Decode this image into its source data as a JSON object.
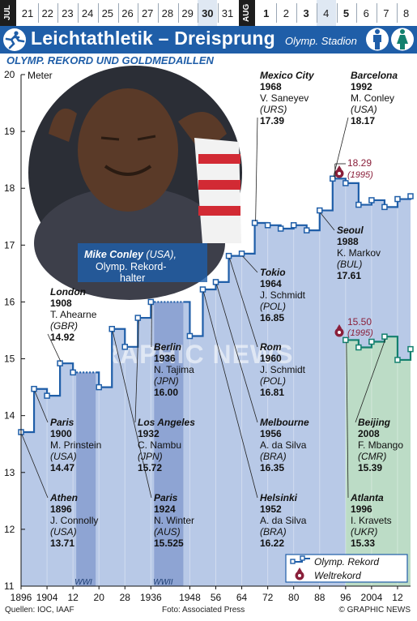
{
  "date_bar": {
    "month_start": "JUL",
    "month_end": "AUG",
    "days_jul": [
      "21",
      "22",
      "23",
      "24",
      "25",
      "26",
      "27",
      "28",
      "29",
      "30",
      "31"
    ],
    "days_aug": [
      "1",
      "2",
      "3",
      "4",
      "5",
      "6",
      "7",
      "8"
    ],
    "bold_days": [
      "30",
      "1",
      "3",
      "5"
    ]
  },
  "header": {
    "title": "Leichtathletik – Dreisprung",
    "venue": "Olymp. Stadion",
    "sport_icon": "triple-jump-pictogram",
    "gender_icons": [
      "male-icon",
      "female-icon"
    ],
    "brand_color": "#1f5ea8"
  },
  "subtitle": "Olymp. Rekord und Goldmedaillen",
  "photo": {
    "caption_name": "Mike Conley",
    "caption_country": "(USA),",
    "caption_role": "Olymp. Rekord-",
    "caption_role2": "halter"
  },
  "watermark": {
    "text": "GRAPHIC NEWS"
  },
  "footer": {
    "sources": "Quellen: IOC, IAAF",
    "photo_credit": "Foto: Associated Press",
    "copyright": "© GRAPHIC NEWS"
  },
  "chart_data": {
    "type": "line",
    "ylabel": "Meter",
    "ylim": [
      11,
      20
    ],
    "y_ticks": [
      11,
      12,
      13,
      14,
      15,
      16,
      17,
      18,
      19,
      20
    ],
    "xlim": [
      1896,
      2016
    ],
    "x_ticks": [
      1896,
      1904,
      1912,
      1920,
      1928,
      1936,
      1948,
      1956,
      1964,
      1972,
      1980,
      1988,
      1996,
      2004,
      2012
    ],
    "x_tick_labels": [
      "1896",
      "1904",
      "12",
      "20",
      "28",
      "1936",
      "1948",
      "56",
      "64",
      "72",
      "80",
      "88",
      "96",
      "2004",
      "12"
    ],
    "series": [
      {
        "name": "Olymp. Rekord",
        "sport": "men",
        "points": [
          {
            "year": 1896,
            "value": 13.71
          },
          {
            "year": 1900,
            "value": 14.47
          },
          {
            "year": 1904,
            "value": 14.35
          },
          {
            "year": 1908,
            "value": 14.92
          },
          {
            "year": 1912,
            "value": 14.76
          },
          {
            "year": 1920,
            "value": 14.5
          },
          {
            "year": 1924,
            "value": 15.525
          },
          {
            "year": 1928,
            "value": 15.21
          },
          {
            "year": 1932,
            "value": 15.72
          },
          {
            "year": 1936,
            "value": 16.0
          },
          {
            "year": 1948,
            "value": 15.4
          },
          {
            "year": 1952,
            "value": 16.22
          },
          {
            "year": 1956,
            "value": 16.35
          },
          {
            "year": 1960,
            "value": 16.81
          },
          {
            "year": 1964,
            "value": 16.85
          },
          {
            "year": 1968,
            "value": 17.39
          },
          {
            "year": 1972,
            "value": 17.35
          },
          {
            "year": 1976,
            "value": 17.29
          },
          {
            "year": 1980,
            "value": 17.35
          },
          {
            "year": 1984,
            "value": 17.26
          },
          {
            "year": 1988,
            "value": 17.61
          },
          {
            "year": 1992,
            "value": 18.17
          },
          {
            "year": 1996,
            "value": 18.09
          },
          {
            "year": 2000,
            "value": 17.71
          },
          {
            "year": 2004,
            "value": 17.79
          },
          {
            "year": 2008,
            "value": 17.67
          },
          {
            "year": 2012,
            "value": 17.81
          },
          {
            "year": 2016,
            "value": 17.86
          }
        ],
        "gaps": [
          [
            1912,
            1920
          ],
          [
            1936,
            1948
          ]
        ]
      },
      {
        "name": "Olymp. Rekord",
        "sport": "women",
        "points": [
          {
            "year": 1996,
            "value": 15.33
          },
          {
            "year": 2000,
            "value": 15.2
          },
          {
            "year": 2004,
            "value": 15.3
          },
          {
            "year": 2008,
            "value": 15.39
          },
          {
            "year": 2012,
            "value": 14.98
          },
          {
            "year": 2016,
            "value": 15.17
          }
        ]
      }
    ],
    "world_records": [
      {
        "label": "Weltrekord",
        "value": "18.29",
        "year_note": "(1995)",
        "sport": "men"
      },
      {
        "label": "Weltrekord",
        "value": "15.50",
        "year_note": "(1995)",
        "sport": "women"
      }
    ],
    "war_bands": [
      {
        "label": "WWI",
        "from": 1916,
        "to": 1916
      },
      {
        "label": "WWII",
        "from": 1940,
        "to": 1944
      }
    ],
    "annotations": [
      {
        "city": "Athen",
        "year": "1896",
        "name": "J. Connolly",
        "country": "(USA)",
        "result": "13.71"
      },
      {
        "city": "Paris",
        "year": "1900",
        "name": "M. Prinstein",
        "country": "(USA)",
        "result": "14.47"
      },
      {
        "city": "London",
        "year": "1908",
        "name": "T. Ahearne",
        "country": "(GBR)",
        "result": "14.92"
      },
      {
        "city": "Paris",
        "year": "1924",
        "name": "N. Winter",
        "country": "(AUS)",
        "result": "15.525"
      },
      {
        "city": "Los Angeles",
        "year": "1932",
        "name": "C. Nambu",
        "country": "(JPN)",
        "result": "15.72"
      },
      {
        "city": "Berlin",
        "year": "1936",
        "name": "N. Tajima",
        "country": "(JPN)",
        "result": "16.00"
      },
      {
        "city": "Helsinki",
        "year": "1952",
        "name": "A. da Silva",
        "country": "(BRA)",
        "result": "16.22"
      },
      {
        "city": "Melbourne",
        "year": "1956",
        "name": "A. da Silva",
        "country": "(BRA)",
        "result": "16.35"
      },
      {
        "city": "Rom",
        "year": "1960",
        "name": "J. Schmidt",
        "country": "(POL)",
        "result": "16.81"
      },
      {
        "city": "Tokio",
        "year": "1964",
        "name": "J. Schmidt",
        "country": "(POL)",
        "result": "16.85"
      },
      {
        "city": "Mexico City",
        "year": "1968",
        "name": "V. Saneyev",
        "country": "(URS)",
        "result": "17.39"
      },
      {
        "city": "Seoul",
        "year": "1988",
        "name": "K. Markov",
        "country": "(BUL)",
        "result": "17.61"
      },
      {
        "city": "Barcelona",
        "year": "1992",
        "name": "M. Conley",
        "country": "(USA)",
        "result": "18.17"
      },
      {
        "city": "Atlanta",
        "year": "1996",
        "name": "I. Kravets",
        "country": "(UKR)",
        "result": "15.33"
      },
      {
        "city": "Beijing",
        "year": "2008",
        "name": "F. Mbango",
        "country": "(CMR)",
        "result": "15.39"
      }
    ],
    "legend": {
      "position": "bottom-right",
      "items": [
        {
          "label": "Olymp. Rekord",
          "marker": "square-step-line"
        },
        {
          "label": "Weltrekord",
          "marker": "record-medal"
        }
      ]
    },
    "colors": {
      "men_line": "#1f5ea8",
      "men_fill": "#b8c9e7",
      "women_line": "#13806e",
      "women_fill": "#bcdcc6",
      "war_band": "#8ea4d3",
      "world_record": "#8a1f3a"
    }
  }
}
